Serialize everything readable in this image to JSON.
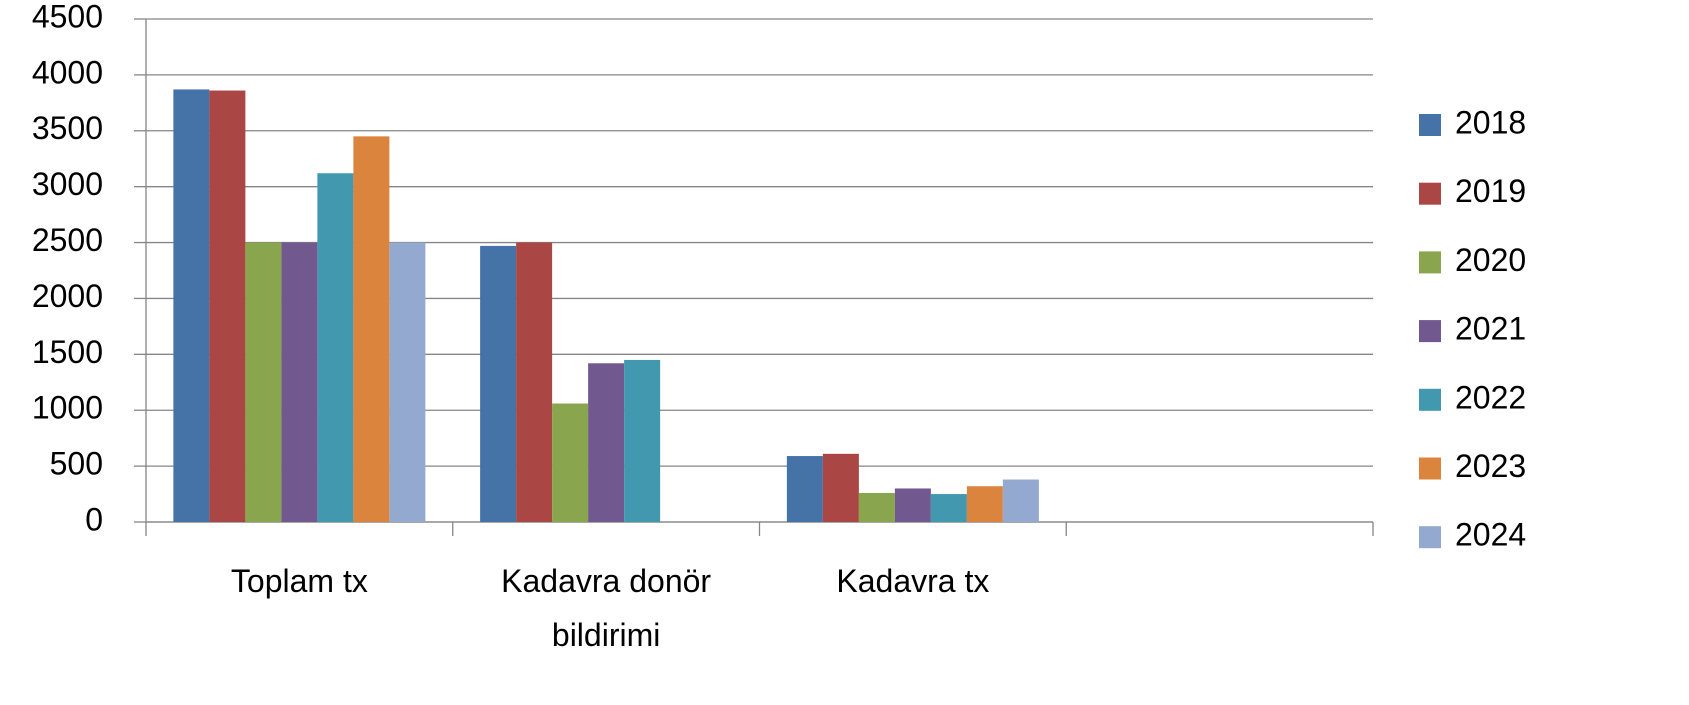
{
  "chart_data": {
    "type": "bar",
    "categories": [
      "Toplam tx",
      "Kadavra donör bildirimi",
      "Kadavra tx",
      null
    ],
    "series": [
      {
        "name": "2018",
        "color": "#4572a7",
        "values": [
          3870,
          2470,
          590,
          null
        ]
      },
      {
        "name": "2019",
        "color": "#aa4643",
        "values": [
          3860,
          2500,
          610,
          null
        ]
      },
      {
        "name": "2020",
        "color": "#89a54e",
        "values": [
          2500,
          1060,
          260,
          null
        ]
      },
      {
        "name": "2021",
        "color": "#71588f",
        "values": [
          2500,
          1420,
          300,
          null
        ]
      },
      {
        "name": "2022",
        "color": "#4198af",
        "values": [
          3120,
          1450,
          250,
          null
        ]
      },
      {
        "name": "2023",
        "color": "#db843d",
        "values": [
          3450,
          null,
          320,
          null
        ]
      },
      {
        "name": "2024",
        "color": "#93a9cf",
        "values": [
          2500,
          null,
          380,
          null
        ]
      }
    ],
    "ylim": [
      0,
      4500
    ],
    "yticks": [
      0,
      500,
      1000,
      1500,
      2000,
      2500,
      3000,
      3500,
      4000,
      4500
    ],
    "grid": true,
    "legend": "right"
  }
}
